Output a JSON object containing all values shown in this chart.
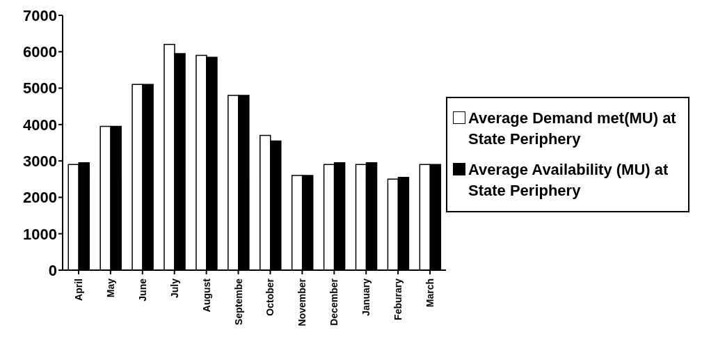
{
  "chart_data": {
    "type": "bar",
    "categories": [
      "April",
      "May",
      "June",
      "July",
      "August",
      "Septembe",
      "October",
      "November",
      "December",
      "January",
      "Feburary",
      "March"
    ],
    "series": [
      {
        "name": "Average Demand met(MU) at State Periphery",
        "color": "#ffffff",
        "values": [
          2900,
          3950,
          5100,
          6200,
          5900,
          4800,
          3700,
          2600,
          2900,
          2900,
          2500,
          2900
        ]
      },
      {
        "name": "Average Availability (MU) at State Periphery",
        "color": "#000000",
        "values": [
          2950,
          3950,
          5100,
          5950,
          5850,
          4800,
          3550,
          2600,
          2950,
          2950,
          2550,
          2900
        ]
      }
    ],
    "ylim": [
      0,
      7000
    ],
    "yticks": [
      0,
      1000,
      2000,
      3000,
      4000,
      5000,
      6000,
      7000
    ],
    "grid": false,
    "legend": "right"
  }
}
